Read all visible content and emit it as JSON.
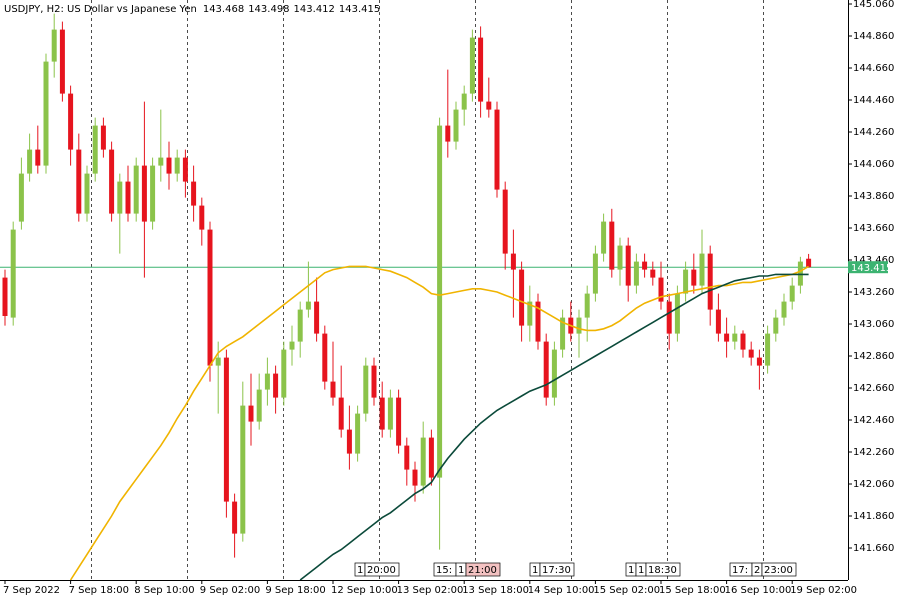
{
  "chart_data": {
    "type": "candlestick",
    "title": "USDJPY, H2:  US Dollar vs Japanese Yen",
    "up_color": "#8bc34a",
    "down_color": "#e6141e",
    "price_line_color": "#3cb371",
    "categories": [
      "7 Sep 2022",
      null,
      null,
      null,
      null,
      null,
      null,
      null,
      "7 Sep 18:00",
      null,
      null,
      null,
      null,
      null,
      null,
      null,
      "8 Sep 10:00",
      null,
      null,
      null,
      null,
      null,
      null,
      null,
      "9 Sep 02:00",
      null,
      null,
      null,
      null,
      null,
      null,
      null,
      "9 Sep 18:00",
      null,
      null,
      null,
      null,
      null,
      null,
      null,
      "12 Sep 10:00",
      null,
      null,
      null,
      null,
      null,
      null,
      null,
      "13 Sep 02:00",
      null,
      null,
      null,
      null,
      null,
      null,
      null,
      "13 Sep 18:00",
      null,
      null,
      null,
      null,
      null,
      null,
      null,
      "14 Sep 10:00",
      null,
      null,
      null,
      null,
      null,
      null,
      null,
      "15 Sep 02:00",
      null,
      null,
      null,
      null,
      null,
      null,
      null,
      "15 Sep 18:00",
      null,
      null,
      null,
      null,
      null,
      null,
      null,
      "16 Sep 10:00",
      null,
      null,
      null,
      null,
      null,
      null,
      null,
      "19 Sep 02:00",
      null,
      null
    ],
    "open": [
      143.35,
      143.1,
      143.7,
      144.0,
      144.15,
      144.05,
      144.7,
      144.9,
      144.5,
      144.15,
      143.75,
      144.0,
      144.3,
      144.15,
      143.75,
      143.95,
      143.75,
      144.05,
      143.7,
      144.05,
      144.1,
      144.0,
      144.1,
      143.95,
      143.8,
      143.65,
      142.8,
      142.85,
      141.95,
      141.75,
      142.55,
      142.45,
      142.65,
      142.75,
      142.6,
      142.9,
      142.95,
      143.15,
      143.2,
      143.0,
      142.7,
      142.6,
      142.4,
      142.25,
      142.5,
      142.8,
      142.6,
      142.4,
      142.6,
      142.3,
      142.15,
      142.05,
      142.35,
      142.1,
      144.3,
      144.2,
      144.4,
      144.5,
      144.85,
      144.45,
      144.4,
      143.9,
      143.5,
      143.4,
      143.05,
      143.2,
      142.95,
      142.6,
      142.9,
      143.1,
      143.0,
      143.1,
      143.25,
      143.5,
      143.7,
      143.4,
      143.55,
      143.3,
      143.45,
      143.4,
      143.35,
      143.2,
      143.0,
      143.25,
      143.4,
      143.3,
      143.5,
      143.15,
      143.0,
      142.95,
      143.0,
      142.9,
      142.85,
      142.8,
      143.0,
      143.1,
      143.2,
      143.3,
      143.468
    ],
    "high": [
      143.4,
      143.7,
      144.1,
      144.25,
      144.3,
      144.75,
      145.0,
      144.95,
      144.55,
      144.25,
      144.05,
      144.35,
      144.35,
      144.2,
      144.0,
      144.05,
      144.1,
      144.45,
      144.1,
      144.4,
      144.2,
      144.15,
      144.15,
      144.05,
      143.85,
      143.7,
      142.95,
      142.9,
      142.0,
      142.7,
      142.75,
      142.75,
      142.85,
      142.8,
      142.95,
      143.05,
      143.2,
      143.45,
      143.35,
      143.05,
      142.95,
      142.8,
      142.55,
      142.55,
      142.85,
      142.85,
      142.7,
      142.65,
      142.65,
      142.35,
      142.2,
      142.45,
      142.4,
      144.35,
      144.65,
      144.45,
      144.55,
      144.9,
      144.92,
      144.6,
      144.45,
      143.95,
      143.65,
      143.45,
      143.3,
      143.25,
      143.0,
      142.95,
      143.15,
      143.2,
      143.15,
      143.3,
      143.55,
      143.75,
      143.78,
      143.6,
      143.6,
      143.5,
      143.5,
      143.45,
      143.45,
      143.25,
      143.3,
      143.45,
      143.5,
      143.65,
      143.55,
      143.25,
      143.1,
      143.05,
      143.02,
      142.95,
      142.9,
      143.05,
      143.15,
      143.25,
      143.35,
      143.48,
      143.498
    ],
    "low": [
      143.05,
      143.05,
      143.65,
      143.95,
      144.0,
      144.0,
      144.6,
      144.45,
      144.05,
      143.7,
      143.7,
      143.95,
      144.1,
      143.7,
      143.5,
      143.7,
      143.7,
      143.35,
      143.65,
      143.95,
      143.9,
      143.95,
      143.85,
      143.7,
      143.55,
      142.7,
      142.5,
      141.85,
      141.6,
      141.7,
      142.3,
      142.4,
      142.55,
      142.5,
      142.55,
      142.8,
      142.85,
      143.1,
      142.95,
      142.65,
      142.55,
      142.35,
      142.15,
      142.2,
      142.45,
      142.55,
      142.35,
      142.35,
      142.25,
      142.05,
      141.95,
      142.0,
      142.05,
      141.65,
      144.1,
      144.15,
      144.3,
      144.45,
      144.35,
      144.35,
      143.85,
      143.4,
      143.1,
      142.95,
      142.95,
      142.9,
      142.55,
      142.55,
      142.85,
      142.95,
      142.85,
      142.95,
      143.2,
      143.45,
      143.35,
      143.3,
      143.2,
      143.25,
      143.35,
      143.3,
      143.15,
      142.9,
      142.95,
      143.2,
      143.25,
      143.25,
      143.05,
      142.95,
      142.85,
      142.9,
      142.85,
      142.8,
      142.65,
      142.75,
      142.95,
      143.05,
      143.15,
      143.25,
      143.412
    ],
    "close": [
      143.11,
      143.65,
      144.0,
      144.15,
      144.05,
      144.7,
      144.9,
      144.5,
      144.15,
      143.75,
      144.0,
      144.3,
      144.15,
      143.75,
      143.95,
      143.75,
      144.05,
      143.7,
      144.05,
      144.1,
      144.0,
      144.1,
      143.95,
      143.8,
      143.65,
      142.8,
      142.85,
      141.95,
      141.75,
      142.55,
      142.45,
      142.65,
      142.75,
      142.6,
      142.9,
      142.95,
      143.15,
      143.2,
      143.0,
      142.7,
      142.6,
      142.4,
      142.25,
      142.5,
      142.8,
      142.6,
      142.4,
      142.6,
      142.3,
      142.15,
      142.05,
      142.35,
      142.1,
      144.3,
      144.2,
      144.4,
      144.5,
      144.85,
      144.45,
      144.4,
      143.9,
      143.5,
      143.4,
      143.05,
      143.2,
      142.95,
      142.6,
      142.9,
      143.1,
      143.0,
      143.1,
      143.25,
      143.5,
      143.7,
      143.4,
      143.55,
      143.3,
      143.45,
      143.4,
      143.35,
      143.2,
      143.0,
      143.25,
      143.4,
      143.3,
      143.5,
      143.15,
      143.0,
      142.95,
      143.0,
      142.9,
      142.85,
      142.8,
      143.0,
      143.1,
      143.2,
      143.3,
      143.45,
      143.415
    ],
    "lines": [
      {
        "color": "#f0b400",
        "values": [
          null,
          null,
          null,
          null,
          null,
          null,
          null,
          null,
          141.46,
          141.54,
          141.62,
          141.7,
          141.78,
          141.86,
          141.95,
          142.02,
          142.09,
          142.16,
          142.23,
          142.3,
          142.38,
          142.47,
          142.55,
          142.64,
          142.72,
          142.8,
          142.88,
          142.92,
          142.95,
          142.98,
          143.02,
          143.06,
          143.1,
          143.14,
          143.18,
          143.22,
          143.26,
          143.3,
          143.34,
          143.38,
          143.4,
          143.41,
          143.42,
          143.42,
          143.42,
          143.41,
          143.4,
          143.39,
          143.37,
          143.35,
          143.32,
          143.29,
          143.25,
          143.24,
          143.25,
          143.26,
          143.27,
          143.28,
          143.28,
          143.27,
          143.26,
          143.24,
          143.22,
          143.2,
          143.18,
          143.16,
          143.13,
          143.1,
          143.07,
          143.05,
          143.03,
          143.02,
          143.02,
          143.03,
          143.05,
          143.08,
          143.12,
          143.16,
          143.19,
          143.21,
          143.23,
          143.24,
          143.25,
          143.26,
          143.27,
          143.28,
          143.29,
          143.3,
          143.3,
          143.31,
          143.32,
          143.32,
          143.33,
          143.34,
          143.35,
          143.36,
          143.37,
          143.39,
          143.42
        ]
      },
      {
        "color": "#0b4a3a",
        "values": [
          null,
          null,
          null,
          null,
          null,
          null,
          null,
          null,
          null,
          null,
          null,
          null,
          null,
          null,
          null,
          null,
          null,
          null,
          null,
          null,
          null,
          null,
          null,
          null,
          null,
          null,
          null,
          null,
          null,
          null,
          null,
          null,
          null,
          null,
          null,
          null,
          141.46,
          141.5,
          141.54,
          141.58,
          141.62,
          141.65,
          141.69,
          141.73,
          141.77,
          141.81,
          141.85,
          141.88,
          141.92,
          141.96,
          142.0,
          142.03,
          142.07,
          142.15,
          142.22,
          142.28,
          142.34,
          142.39,
          142.44,
          142.48,
          142.52,
          142.55,
          142.58,
          142.61,
          142.64,
          142.66,
          142.68,
          142.71,
          142.74,
          142.77,
          142.8,
          142.83,
          142.86,
          142.89,
          142.92,
          142.95,
          142.98,
          143.01,
          143.04,
          143.07,
          143.1,
          143.13,
          143.16,
          143.19,
          143.22,
          143.25,
          143.27,
          143.29,
          143.31,
          143.33,
          143.34,
          143.35,
          143.36,
          143.36,
          143.37,
          143.37,
          143.37,
          143.37,
          143.37
        ]
      }
    ],
    "events": [
      [
        "1",
        "20:00"
      ],
      [
        "15:",
        "1",
        "21:00"
      ],
      [
        "1",
        "17:30"
      ],
      [
        "1",
        "1",
        "18:30"
      ],
      [
        "17:",
        "2",
        "23:00"
      ]
    ],
    "ylim": [
      141.46,
      145.085
    ],
    "yticks": [
      {
        "value": 145.06,
        "label": "145.060"
      },
      {
        "value": 144.86,
        "label": "144.860"
      },
      {
        "value": 144.66,
        "label": "144.660"
      },
      {
        "value": 144.46,
        "label": "144.460"
      },
      {
        "value": 144.26,
        "label": "144.260"
      },
      {
        "value": 144.06,
        "label": "144.060"
      },
      {
        "value": 143.86,
        "label": "143.860"
      },
      {
        "value": 143.66,
        "label": "143.660"
      },
      {
        "value": 143.46,
        "label": "143.460"
      },
      {
        "value": 143.26,
        "label": "143.260"
      },
      {
        "value": 143.06,
        "label": "143.060"
      },
      {
        "value": 142.86,
        "label": "142.860"
      },
      {
        "value": 142.66,
        "label": "142.660"
      },
      {
        "value": 142.46,
        "label": "142.460"
      },
      {
        "value": 142.26,
        "label": "142.260"
      },
      {
        "value": 142.06,
        "label": "142.060"
      },
      {
        "value": 141.86,
        "label": "141.860"
      },
      {
        "value": 141.66,
        "label": "141.660"
      }
    ]
  }
}
